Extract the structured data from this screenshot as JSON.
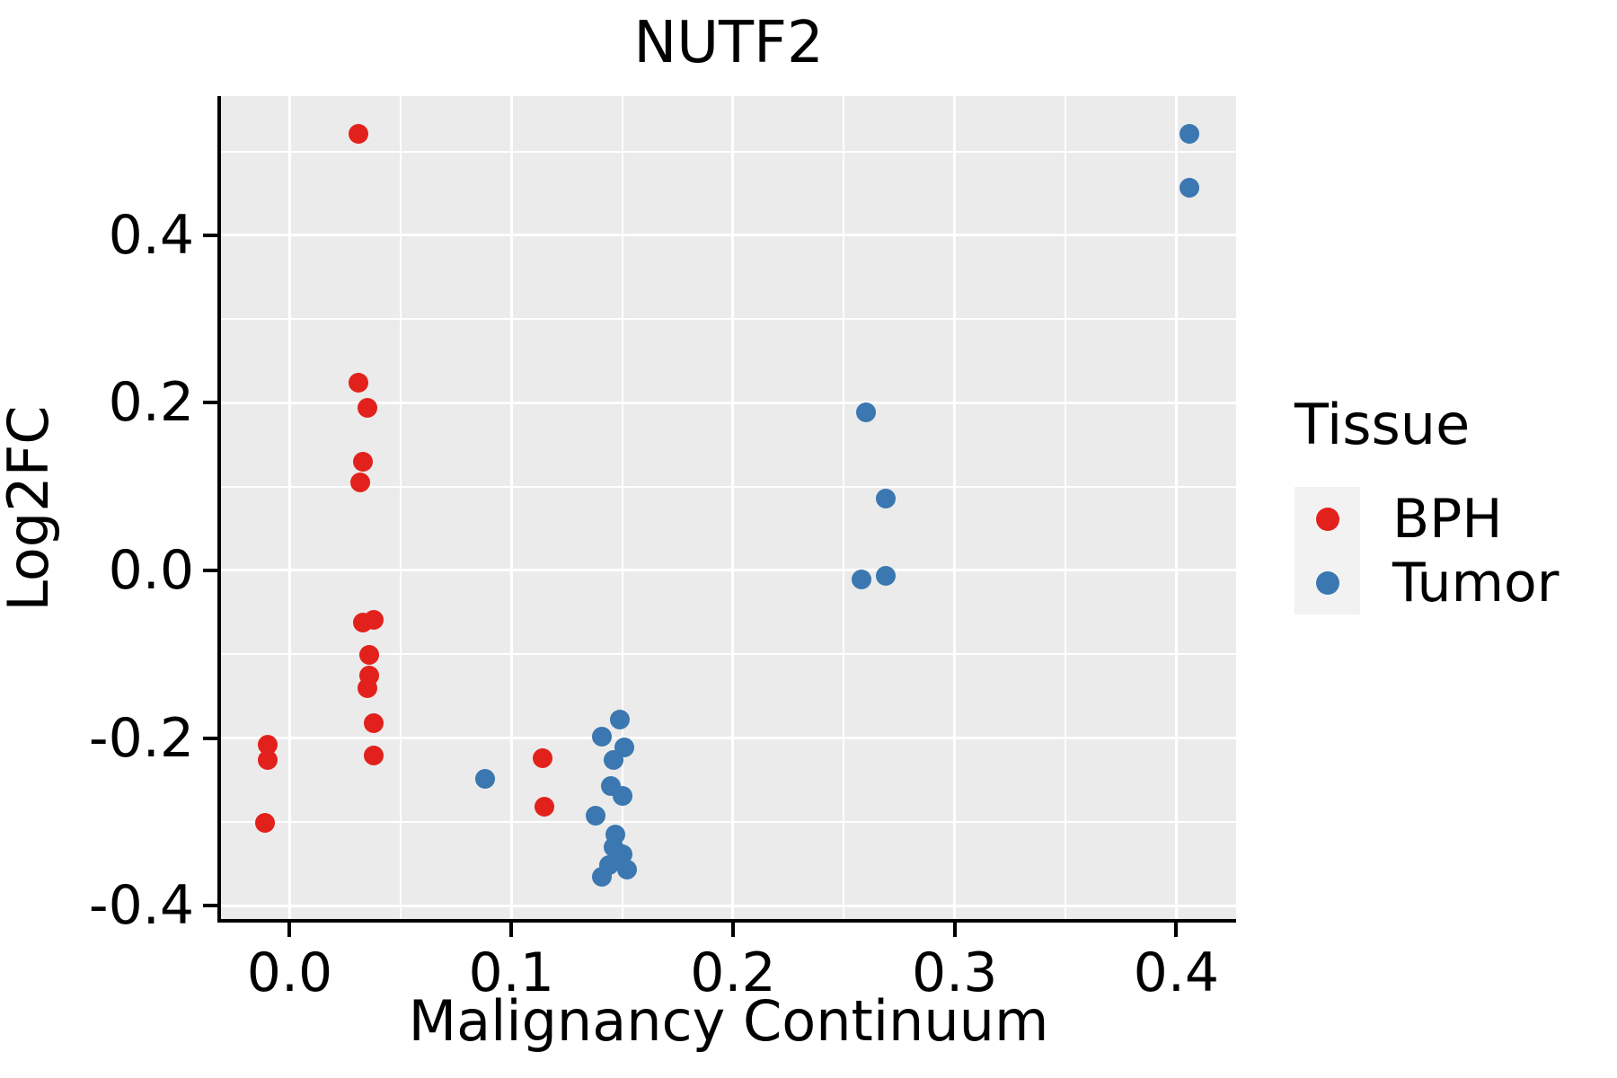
{
  "title": "NUTF2",
  "colors": {
    "bph": "#E3211C",
    "tumor": "#3B77B0",
    "panel_bg": "#EBEBEB",
    "grid": "#FFFFFF",
    "legend_key_bg": "#F2F2F2",
    "axis": "#000000",
    "text": "#000000"
  },
  "legend": {
    "title": "Tissue",
    "entries": [
      {
        "label": "BPH",
        "color": "#E3211C"
      },
      {
        "label": "Tumor",
        "color": "#3B77B0"
      }
    ]
  },
  "chart_data": {
    "type": "scatter",
    "title": "NUTF2",
    "xlabel": "Malignancy Continuum",
    "ylabel": "Log2FC",
    "xlim": [
      -0.031,
      0.427
    ],
    "ylim": [
      -0.416,
      0.566
    ],
    "x_ticks": [
      0.0,
      0.1,
      0.2,
      0.3,
      0.4
    ],
    "x_tick_labels": [
      "0.0",
      "0.1",
      "0.2",
      "0.3",
      "0.4"
    ],
    "y_ticks": [
      -0.4,
      -0.2,
      0.0,
      0.2,
      0.4
    ],
    "y_tick_labels": [
      "-0.4",
      "-0.2",
      "0.0",
      "0.2",
      "0.4"
    ],
    "x_minor_ticks": [
      0.05,
      0.15,
      0.25,
      0.35
    ],
    "y_minor_ticks": [
      -0.3,
      -0.1,
      0.1,
      0.3,
      0.5
    ],
    "grid": true,
    "legend_position": "right",
    "series": [
      {
        "name": "BPH",
        "color": "#E3211C",
        "points": [
          [
            -0.01,
            -0.208
          ],
          [
            -0.01,
            -0.226
          ],
          [
            -0.011,
            -0.301
          ],
          [
            0.031,
            0.521
          ],
          [
            0.031,
            0.224
          ],
          [
            0.035,
            0.194
          ],
          [
            0.033,
            0.13
          ],
          [
            0.032,
            0.105
          ],
          [
            0.033,
            -0.062
          ],
          [
            0.038,
            -0.059
          ],
          [
            0.036,
            -0.101
          ],
          [
            0.036,
            -0.126
          ],
          [
            0.035,
            -0.141
          ],
          [
            0.038,
            -0.182
          ],
          [
            0.038,
            -0.221
          ],
          [
            0.114,
            -0.224
          ],
          [
            0.115,
            -0.282
          ]
        ]
      },
      {
        "name": "Tumor",
        "color": "#3B77B0",
        "points": [
          [
            0.088,
            -0.249
          ],
          [
            0.149,
            -0.178
          ],
          [
            0.141,
            -0.198
          ],
          [
            0.151,
            -0.211
          ],
          [
            0.146,
            -0.226
          ],
          [
            0.145,
            -0.257
          ],
          [
            0.15,
            -0.269
          ],
          [
            0.138,
            -0.293
          ],
          [
            0.147,
            -0.315
          ],
          [
            0.146,
            -0.33
          ],
          [
            0.15,
            -0.339
          ],
          [
            0.144,
            -0.352
          ],
          [
            0.152,
            -0.357
          ],
          [
            0.141,
            -0.366
          ],
          [
            0.26,
            0.189
          ],
          [
            0.269,
            0.086
          ],
          [
            0.258,
            -0.011
          ],
          [
            0.269,
            -0.006
          ],
          [
            0.406,
            0.521
          ],
          [
            0.406,
            0.457
          ]
        ]
      }
    ]
  }
}
